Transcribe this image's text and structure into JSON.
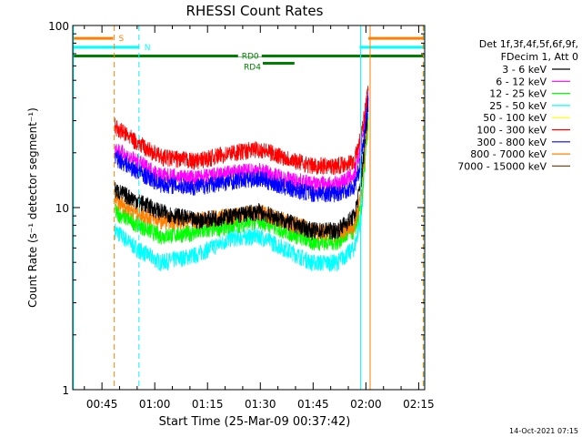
{
  "chart_data": {
    "type": "line",
    "title": "RHESSI Count Rates",
    "xlabel": "Start Time (25-Mar-09 00:37:42)",
    "ylabel": "Count Rate (s⁻¹ detector segment⁻¹)",
    "yscale": "log",
    "ylim": [
      1,
      100
    ],
    "y_ticks": [
      {
        "value": 1,
        "label": "1"
      },
      {
        "value": 10,
        "label": "10"
      },
      {
        "value": 100,
        "label": "100"
      }
    ],
    "x_range_minutes": [
      0,
      100
    ],
    "x_ticks": [
      {
        "minute": 8.3,
        "label": "00:45"
      },
      {
        "minute": 23.3,
        "label": "01:00"
      },
      {
        "minute": 38.3,
        "label": "01:15"
      },
      {
        "minute": 53.3,
        "label": "01:30"
      },
      {
        "minute": 68.3,
        "label": "01:45"
      },
      {
        "minute": 83.3,
        "label": "02:00"
      },
      {
        "minute": 98.3,
        "label": "02:15"
      }
    ],
    "grid": false,
    "legend_position": "right",
    "legend_header": [
      "Det 1f,3f,4f,5f,6f,9f,",
      "FDecim 1, Att 0"
    ],
    "series": [
      {
        "name": "3 - 6 keV",
        "color": "#000000",
        "points": [
          [
            12,
            12.5
          ],
          [
            18,
            11
          ],
          [
            25,
            9.5
          ],
          [
            35,
            8.5
          ],
          [
            45,
            9
          ],
          [
            53,
            9.5
          ],
          [
            60,
            8.5
          ],
          [
            68,
            7.5
          ],
          [
            75,
            7.5
          ],
          [
            80,
            9
          ],
          [
            82,
            14
          ],
          [
            84,
            38
          ]
        ]
      },
      {
        "name": "6 - 12 keV",
        "color": "#ff00ff",
        "points": [
          [
            12,
            21
          ],
          [
            18,
            18
          ],
          [
            25,
            15
          ],
          [
            35,
            14.5
          ],
          [
            45,
            15.5
          ],
          [
            53,
            16
          ],
          [
            60,
            14.5
          ],
          [
            68,
            13.5
          ],
          [
            75,
            13.5
          ],
          [
            80,
            15
          ],
          [
            82,
            22
          ],
          [
            84,
            42
          ]
        ]
      },
      {
        "name": "12 - 25 keV",
        "color": "#00ff00",
        "points": [
          [
            12,
            9.5
          ],
          [
            18,
            8.2
          ],
          [
            25,
            7
          ],
          [
            35,
            7.3
          ],
          [
            45,
            8
          ],
          [
            53,
            8.5
          ],
          [
            60,
            7.5
          ],
          [
            68,
            6.5
          ],
          [
            75,
            6.5
          ],
          [
            80,
            7.5
          ],
          [
            82,
            10
          ],
          [
            84,
            30
          ]
        ]
      },
      {
        "name": "25 - 50 keV",
        "color": "#00ffff",
        "points": [
          [
            12,
            7.5
          ],
          [
            18,
            6
          ],
          [
            25,
            5
          ],
          [
            35,
            5.5
          ],
          [
            45,
            6.8
          ],
          [
            53,
            7
          ],
          [
            60,
            6
          ],
          [
            68,
            5
          ],
          [
            75,
            5
          ],
          [
            80,
            6
          ],
          [
            82,
            9
          ],
          [
            84,
            35
          ]
        ]
      },
      {
        "name": "50 - 100 keV",
        "color": "#ffff00",
        "points": []
      },
      {
        "name": "100 - 300 keV",
        "color": "#ff0000",
        "points": [
          [
            12,
            28
          ],
          [
            18,
            23
          ],
          [
            25,
            19
          ],
          [
            35,
            18
          ],
          [
            45,
            20
          ],
          [
            53,
            21
          ],
          [
            60,
            19
          ],
          [
            68,
            17
          ],
          [
            75,
            17
          ],
          [
            80,
            18
          ],
          [
            82,
            25
          ],
          [
            84,
            45
          ]
        ]
      },
      {
        "name": "300 - 800 keV",
        "color": "#0000ff",
        "points": [
          [
            12,
            19
          ],
          [
            18,
            16
          ],
          [
            25,
            13.5
          ],
          [
            35,
            13
          ],
          [
            45,
            14
          ],
          [
            53,
            14.5
          ],
          [
            60,
            13
          ],
          [
            68,
            12
          ],
          [
            75,
            12
          ],
          [
            80,
            13
          ],
          [
            82,
            18
          ],
          [
            84,
            40
          ]
        ]
      },
      {
        "name": "800 - 7000 keV",
        "color": "#ff8000",
        "points": [
          [
            12,
            11
          ],
          [
            18,
            9.5
          ],
          [
            25,
            8.5
          ],
          [
            35,
            8.5
          ],
          [
            45,
            9
          ],
          [
            53,
            9.5
          ],
          [
            60,
            8.5
          ],
          [
            68,
            7.5
          ],
          [
            75,
            7.2
          ],
          [
            80,
            8
          ],
          [
            82,
            12
          ],
          [
            84,
            33
          ]
        ]
      },
      {
        "name": "7000 - 15000 keV",
        "color": "#8b4513",
        "points": []
      }
    ],
    "attenuator_bars": [
      {
        "label": "S",
        "color": "#ff8000",
        "y_value": 85,
        "segments": [
          [
            0,
            11.5
          ],
          [
            84,
            100
          ]
        ]
      },
      {
        "label": "N",
        "color": "#00ffff",
        "y_value": 76,
        "segments": [
          [
            0,
            18.8
          ],
          [
            81.5,
            100
          ]
        ]
      },
      {
        "label": "RD0",
        "color": "#008000",
        "y_value": 68,
        "segments": [
          [
            0,
            100
          ]
        ]
      },
      {
        "label": "RD4",
        "color": "#008000",
        "y_value": 62,
        "segments": [
          [
            54,
            63
          ]
        ]
      }
    ],
    "vertical_markers": [
      {
        "minute": 0.2,
        "color": "#00ffff",
        "style": "solid"
      },
      {
        "minute": 11.8,
        "color": "#ff8000",
        "style": "dashed"
      },
      {
        "minute": 18.8,
        "color": "#00ffff",
        "style": "dashed"
      },
      {
        "minute": 81.8,
        "color": "#00ffff",
        "style": "solid"
      },
      {
        "minute": 84.5,
        "color": "#ff8000",
        "style": "solid"
      },
      {
        "minute": 99.6,
        "color": "#ff8000",
        "style": "dashed"
      },
      {
        "minute": 99.9,
        "color": "#00ffff",
        "style": "dashed"
      }
    ]
  },
  "footer_timestamp": "14-Oct-2021 07:15"
}
